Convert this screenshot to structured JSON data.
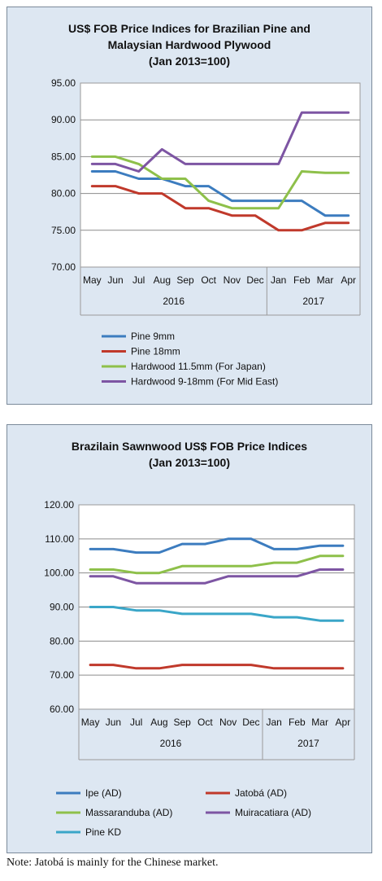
{
  "chart_data": [
    {
      "type": "line",
      "title_lines": [
        "US$ FOB Price Indices for Brazilian Pine and",
        "Malaysian Hardwood Plywood",
        "(Jan 2013=100)"
      ],
      "categories": [
        "May",
        "Jun",
        "Jul",
        "Aug",
        "Sep",
        "Oct",
        "Nov",
        "Dec",
        "Jan",
        "Feb",
        "Mar",
        "Apr"
      ],
      "year_groups": [
        {
          "label": "2016",
          "count": 8
        },
        {
          "label": "2017",
          "count": 4
        }
      ],
      "ylim": [
        70,
        95
      ],
      "yticks": [
        "70.00",
        "75.00",
        "80.00",
        "85.00",
        "90.00",
        "95.00"
      ],
      "grid": true,
      "legend_position": "bottom",
      "series": [
        {
          "name": "Pine 9mm",
          "color": "#3c7cbf",
          "values": [
            83,
            83,
            82,
            82,
            81,
            81,
            79,
            79,
            79,
            79,
            77,
            77
          ]
        },
        {
          "name": "Pine 18mm",
          "color": "#c0392b",
          "values": [
            81,
            81,
            80,
            80,
            78,
            78,
            77,
            77,
            75,
            75,
            76,
            76
          ]
        },
        {
          "name": "Hardwood 11.5mm (For Japan)",
          "color": "#8ec04a",
          "values": [
            85,
            85,
            84,
            82,
            82,
            79,
            78,
            78,
            78,
            83,
            82.8,
            82.8
          ]
        },
        {
          "name": "Hardwood 9-18mm (For Mid East)",
          "color": "#7d55a3",
          "values": [
            84,
            84,
            83,
            86,
            84,
            84,
            84,
            84,
            84,
            91,
            91,
            91
          ]
        }
      ]
    },
    {
      "type": "line",
      "title_lines": [
        "Brazilain Sawnwood US$ FOB Price Indices",
        "(Jan 2013=100)"
      ],
      "categories": [
        "May",
        "Jun",
        "Jul",
        "Aug",
        "Sep",
        "Oct",
        "Nov",
        "Dec",
        "Jan",
        "Feb",
        "Mar",
        "Apr"
      ],
      "year_groups": [
        {
          "label": "2016",
          "count": 8
        },
        {
          "label": "2017",
          "count": 4
        }
      ],
      "ylim": [
        60,
        120
      ],
      "yticks": [
        "60.00",
        "70.00",
        "80.00",
        "90.00",
        "100.00",
        "110.00",
        "120.00"
      ],
      "grid": true,
      "legend_position": "bottom",
      "series": [
        {
          "name": "Ipe (AD)",
          "color": "#3c7cbf",
          "values": [
            107,
            107,
            106,
            106,
            108.5,
            108.5,
            110,
            110,
            107,
            107,
            108,
            108
          ]
        },
        {
          "name": "Jatobá (AD)",
          "color": "#c0392b",
          "values": [
            73,
            73,
            72,
            72,
            73,
            73,
            73,
            73,
            72,
            72,
            72,
            72
          ]
        },
        {
          "name": "Massaranduba (AD)",
          "color": "#8ec04a",
          "values": [
            101,
            101,
            100,
            100,
            102,
            102,
            102,
            102,
            103,
            103,
            105,
            105
          ]
        },
        {
          "name": "Muiracatiara (AD)",
          "color": "#7d55a3",
          "values": [
            99,
            99,
            97,
            97,
            97,
            97,
            99,
            99,
            99,
            99,
            101,
            101
          ]
        },
        {
          "name": "Pine KD",
          "color": "#3aa6c8",
          "values": [
            90,
            90,
            89,
            89,
            88,
            88,
            88,
            88,
            87,
            87,
            86,
            86
          ]
        }
      ]
    }
  ],
  "footnote": "Note: Jatobá is mainly for the Chinese market."
}
